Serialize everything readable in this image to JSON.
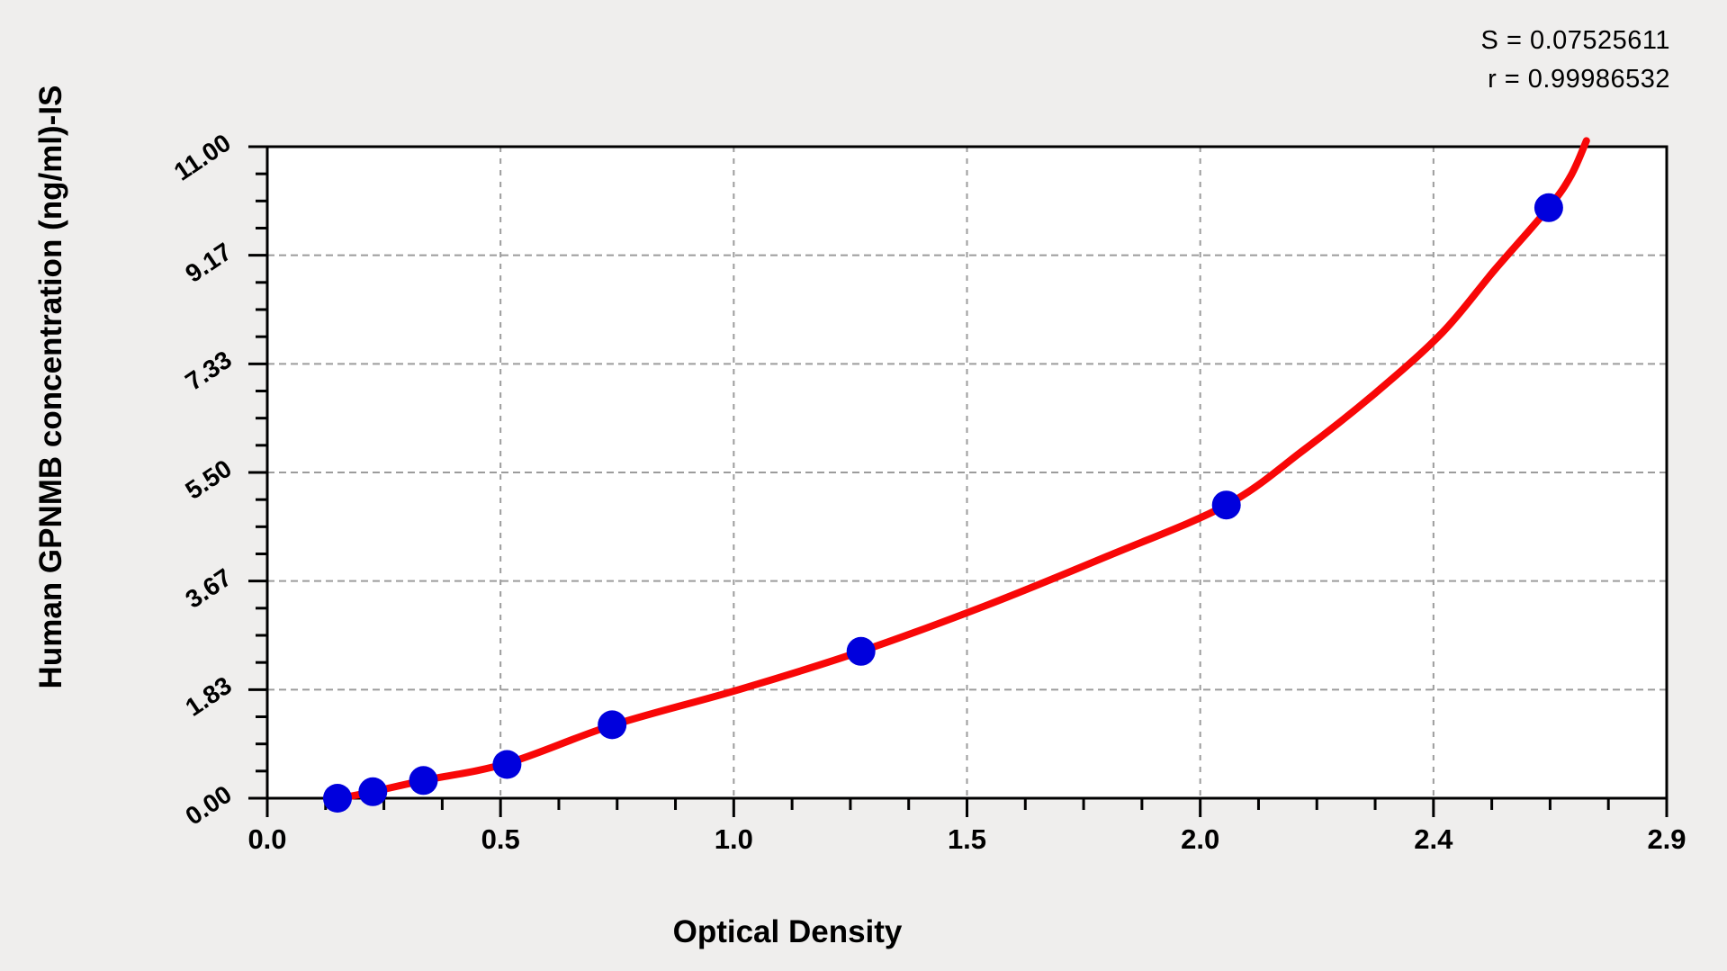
{
  "stats": {
    "s_line": "S = 0.07525611",
    "r_line": "r = 0.99986532"
  },
  "chart_data": {
    "type": "scatter",
    "title": "",
    "xlabel": "Optical Density",
    "ylabel": "Human GPNMB concentration (ng/ml)-IS",
    "x_range": [
      0,
      2.93
    ],
    "y_range": [
      0,
      11
    ],
    "x_tick_labels": [
      "0.0",
      "0.5",
      "1.0",
      "1.5",
      "2.0",
      "2.4",
      "2.9"
    ],
    "y_tick_labels": [
      "0.00",
      "1.83",
      "3.67",
      "5.50",
      "7.33",
      "9.17",
      "11.00"
    ],
    "minor_ticks_per_major": 4,
    "grid": "dashed gray lines at every major division, both axes",
    "legend": "none",
    "annotations": [
      "S = 0.07525611",
      "r = 0.99986532"
    ],
    "points": [
      {
        "od": 0.147,
        "conc": 0.0
      },
      {
        "od": 0.221,
        "conc": 0.11
      },
      {
        "od": 0.327,
        "conc": 0.3
      },
      {
        "od": 0.502,
        "conc": 0.57
      },
      {
        "od": 0.722,
        "conc": 1.24
      },
      {
        "od": 1.243,
        "conc": 2.48
      },
      {
        "od": 2.008,
        "conc": 4.95
      },
      {
        "od": 2.683,
        "conc": 9.97
      }
    ],
    "curve_samples": [
      [
        0.134,
        -0.03
      ],
      [
        0.221,
        0.11
      ],
      [
        0.327,
        0.3
      ],
      [
        0.502,
        0.59
      ],
      [
        0.722,
        1.23
      ],
      [
        0.99,
        1.84
      ],
      [
        1.243,
        2.48
      ],
      [
        1.51,
        3.27
      ],
      [
        1.76,
        4.09
      ],
      [
        2.008,
        4.95
      ],
      [
        2.17,
        5.88
      ],
      [
        2.32,
        6.84
      ],
      [
        2.46,
        7.86
      ],
      [
        2.57,
        8.92
      ],
      [
        2.683,
        9.97
      ],
      [
        2.73,
        10.52
      ],
      [
        2.762,
        11.1
      ]
    ],
    "colors": {
      "point": "#0000dd",
      "curve": "#f80707",
      "grid": "#9c9c9c",
      "axis": "#000000",
      "plot_bg": "#ffffff",
      "page_bg": "#efeeed"
    }
  }
}
